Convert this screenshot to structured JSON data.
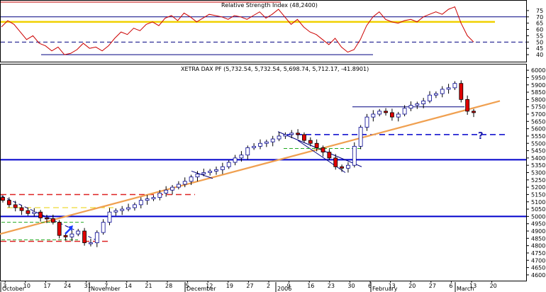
{
  "chart_data": [
    {
      "type": "line",
      "title": "Relative Strength Index (48,2400)",
      "ylim": [
        35,
        80
      ],
      "y_ticks": [
        "75",
        "70",
        "65",
        "60",
        "55",
        "50",
        "45",
        "40"
      ],
      "reference_lines": [
        {
          "value": 70,
          "color": "#000080",
          "style": "solid"
        },
        {
          "value": 66,
          "color": "#f0d000",
          "style": "solid"
        },
        {
          "value": 50,
          "color": "#000080",
          "style": "dashed"
        },
        {
          "value": 40,
          "color": "#000080",
          "style": "solid"
        },
        {
          "value": 80,
          "color": "#c00000",
          "style": "solid"
        }
      ],
      "series": [
        {
          "color": "#cc0000",
          "values": [
            62,
            67,
            64,
            58,
            52,
            55,
            49,
            47,
            43,
            46,
            40,
            41,
            44,
            49,
            45,
            46,
            43,
            47,
            53,
            58,
            56,
            61,
            59,
            64,
            66,
            63,
            69,
            71,
            67,
            73,
            70,
            66,
            69,
            72,
            71,
            70,
            68,
            71,
            70,
            68,
            71,
            74,
            69,
            72,
            76,
            70,
            64,
            68,
            62,
            58,
            56,
            52,
            48,
            53,
            46,
            42,
            44,
            52,
            63,
            70,
            74,
            68,
            66,
            65,
            67,
            68,
            66,
            70,
            72,
            74,
            72,
            76,
            78,
            65,
            55,
            50
          ]
        }
      ]
    },
    {
      "type": "candlestick",
      "title": "XETRA DAX PF (5,732.54, 5,732.54, 5,698.74, 5,712.17, -41.8901)",
      "ylim": [
        4580,
        6020
      ],
      "y_ticks": [
        "6000",
        "5950",
        "5900",
        "5850",
        "5800",
        "5750",
        "5700",
        "5650",
        "5600",
        "5550",
        "5500",
        "5450",
        "5400",
        "5350",
        "5300",
        "5250",
        "5200",
        "5150",
        "5100",
        "5050",
        "5000",
        "4950",
        "4900",
        "4850",
        "4800",
        "4750",
        "4700",
        "4650",
        "4600"
      ],
      "x_tick_labels": [
        "3",
        "10",
        "17",
        "24",
        "31",
        "7",
        "14",
        "21",
        "28",
        "5",
        "12",
        "19",
        "27",
        "2",
        "9",
        "16",
        "23",
        "30",
        "6",
        "13",
        "20",
        "27",
        "6",
        "13",
        "20"
      ],
      "x_month_labels": [
        "October",
        "November",
        "December",
        "2006",
        "February",
        "March"
      ],
      "annotations": [
        "?"
      ],
      "closes": [
        5110,
        5080,
        5060,
        5040,
        5020,
        5030,
        4990,
        4985,
        4960,
        4870,
        4860,
        4880,
        4900,
        4820,
        4820,
        4890,
        4960,
        5030,
        5040,
        5050,
        5060,
        5080,
        5110,
        5120,
        5130,
        5160,
        5180,
        5200,
        5220,
        5240,
        5270,
        5290,
        5300,
        5310,
        5320,
        5340,
        5370,
        5400,
        5420,
        5470,
        5480,
        5500,
        5510,
        5530,
        5550,
        5560,
        5570,
        5560,
        5520,
        5500,
        5470,
        5440,
        5400,
        5340,
        5330,
        5350,
        5480,
        5610,
        5680,
        5700,
        5720,
        5710,
        5680,
        5700,
        5740,
        5760,
        5770,
        5790,
        5830,
        5840,
        5870,
        5880,
        5910,
        5800,
        5720,
        5710
      ],
      "horizontal_lines": [
        {
          "value": 5388,
          "color": "#0000cc",
          "style": "solid"
        },
        {
          "value": 5000,
          "color": "#0000cc",
          "style": "solid"
        },
        {
          "value": 5560,
          "color": "#0000cc",
          "style": "dashed"
        },
        {
          "value": 5150,
          "color": "#dd2222",
          "style": "dashed"
        },
        {
          "value": 4830,
          "color": "#dd2222",
          "style": "dashed"
        },
        {
          "value": 5060,
          "color": "#e8d000",
          "style": "dashed"
        }
      ]
    }
  ]
}
